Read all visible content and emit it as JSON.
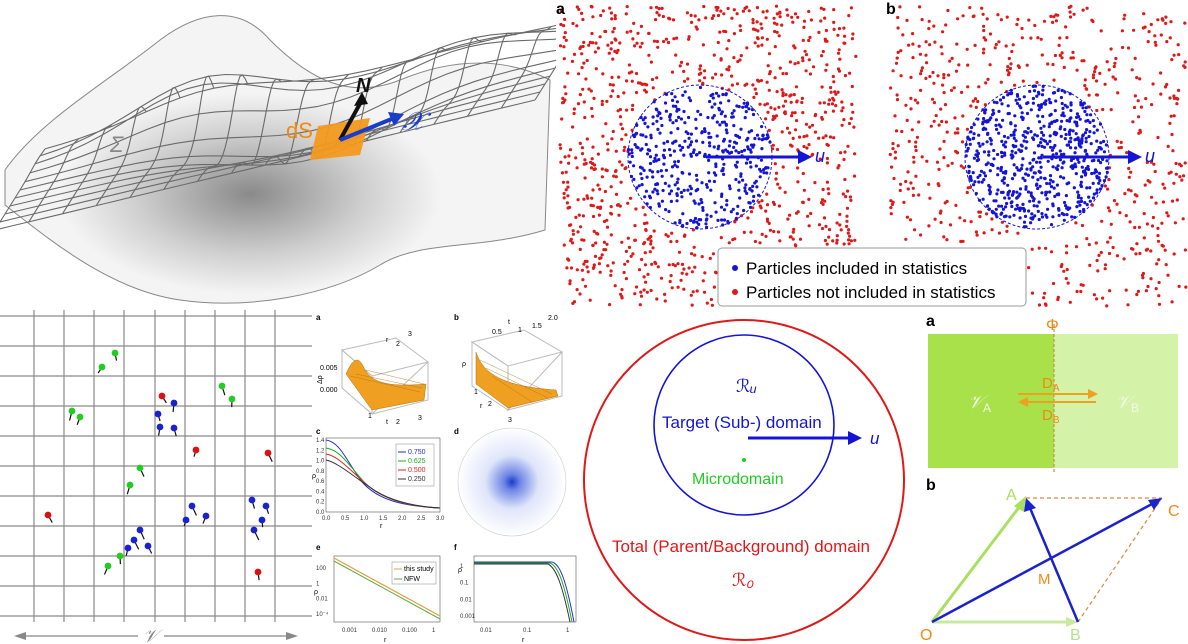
{
  "surface_panel": {
    "sigma_label": "Σ",
    "ds_label": "dS",
    "normal_label": "N",
    "x_label": "𝒳"
  },
  "particle_panels": [
    {
      "letter": "a",
      "u_label": "u"
    },
    {
      "letter": "b",
      "u_label": "u"
    }
  ],
  "legend": {
    "included": "Particles included in statistics",
    "not_included": "Particles not included in statistics",
    "colors": {
      "included": "#1414d6",
      "not_included": "#e01818"
    }
  },
  "grid_panel": {
    "v_label": "𝒱",
    "colors": {
      "green": "#22cc22",
      "red": "#dd1111",
      "blue": "#1a22cc"
    }
  },
  "small_plots": {
    "a": {
      "letter": "a",
      "zlabel": "Δρ",
      "zticks": [
        "0.005",
        "0.000"
      ],
      "tlabel": "t",
      "rlabel": "r",
      "rticks": [
        "2",
        "3"
      ],
      "tticks": [
        "1",
        "2",
        "3"
      ]
    },
    "b": {
      "letter": "b",
      "zlabel": "ρ",
      "tlabel": "t",
      "rlabel": "r",
      "tticks": [
        "0.5",
        "1",
        "1.5",
        "2.0"
      ],
      "rticks": [
        "1",
        "2",
        "3"
      ]
    },
    "c": {
      "letter": "c",
      "ylabel": "ρ",
      "xlabel": "r",
      "xticks": [
        "0.0",
        "0.5",
        "1.0",
        "1.5",
        "2.0",
        "2.5",
        "3.0"
      ],
      "yticks": [
        "1.4",
        "1.2",
        "1.0",
        "0.8",
        "0.6",
        "0.4",
        "0.2",
        "0.0"
      ],
      "legend": [
        "0.750",
        "0.625",
        "0.500",
        "0.250"
      ]
    },
    "d": {
      "letter": "d"
    },
    "e": {
      "letter": "e",
      "ylabel": "ρ",
      "xlabel": "r",
      "xticks": [
        "0.001",
        "0.010",
        "0.100",
        "1"
      ],
      "yticks": [
        "100",
        "1",
        "0.01",
        "10⁻⁴"
      ],
      "legend": [
        "this study",
        "NFW"
      ]
    },
    "f": {
      "letter": "f",
      "ylabel": "ρ",
      "xlabel": "r",
      "xticks": [
        "0.01",
        "0.1",
        "1"
      ],
      "yticks": [
        "1",
        "0.1",
        "0.01",
        "0.001"
      ]
    }
  },
  "domain_diagram": {
    "r_u": "ℛᵤ",
    "target": "Target (Sub-) domain",
    "u": "u",
    "micro": "Microdomain",
    "total": "Total (Parent/Background) domain",
    "r_0": "ℛ₀"
  },
  "flux_panel": {
    "letter": "a",
    "phi": "Φ",
    "va": "𝒱",
    "va_sub": "A",
    "vb": "𝒱",
    "vb_sub": "B",
    "da": "D",
    "da_sub": "A",
    "db": "D",
    "db_sub": "B"
  },
  "vector_panel": {
    "letter": "b",
    "o": "O",
    "a": "A",
    "b": "B",
    "c": "C",
    "m": "M"
  }
}
